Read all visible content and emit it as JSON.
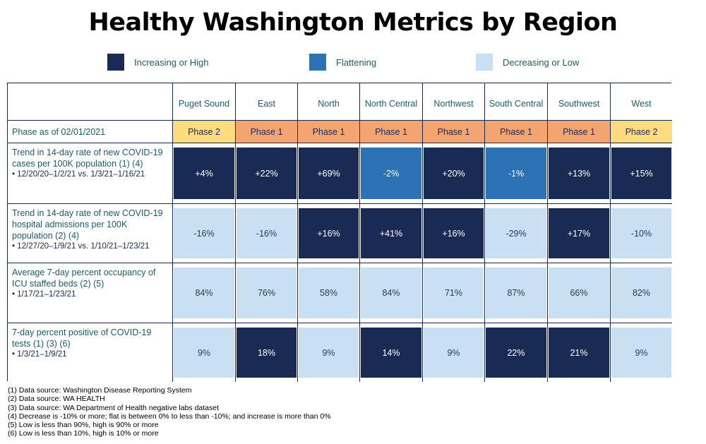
{
  "title": "Healthy Washington Metrics by Region",
  "legend": [
    {
      "label": "Increasing or High",
      "color": "#192a54"
    },
    {
      "label": "Flattening",
      "color": "#2d72b4"
    },
    {
      "label": "Decreasing or Low",
      "color": "#c9dff2"
    }
  ],
  "regions": [
    "Puget Sound",
    "East",
    "North",
    "North Central",
    "Northwest",
    "South Central",
    "Southwest",
    "West"
  ],
  "phase_row": {
    "label": "Phase as of 02/01/2021",
    "values": [
      "Phase 2",
      "Phase 1",
      "Phase 1",
      "Phase 1",
      "Phase 1",
      "Phase 1",
      "Phase 1",
      "Phase 2"
    ],
    "colors": {
      "Phase 1": "#f4a46f",
      "Phase 2": "#fddc80"
    }
  },
  "metrics": [
    {
      "label": "Trend in 14-day rate of new COVID-19 cases per 100K population (1) (4)",
      "bullet": "• 12/20/20–1/2/21 vs. 1/3/21–1/16/21",
      "values": [
        "+4%",
        "+22%",
        "+69%",
        "-2%",
        "+20%",
        "-1%",
        "+13%",
        "+15%"
      ],
      "levels": [
        "dark",
        "dark",
        "dark",
        "mid",
        "dark",
        "mid",
        "dark",
        "dark"
      ]
    },
    {
      "label": "Trend in 14-day rate of new COVID-19 hospital admissions per 100K population (2) (4)",
      "bullet": "• 12/27/20–1/9/21 vs. 1/10/21–1/23/21",
      "values": [
        "-16%",
        "-16%",
        "+16%",
        "+41%",
        "+16%",
        "-29%",
        "+17%",
        "-10%"
      ],
      "levels": [
        "light",
        "light",
        "dark",
        "dark",
        "dark",
        "light",
        "dark",
        "light"
      ]
    },
    {
      "label": "Average 7-day percent occupancy of ICU staffed beds (2) (5)",
      "bullet": "• 1/17/21–1/23/21",
      "values": [
        "84%",
        "76%",
        "58%",
        "84%",
        "71%",
        "87%",
        "66%",
        "82%"
      ],
      "levels": [
        "light",
        "light",
        "light",
        "light",
        "light",
        "light",
        "light",
        "light"
      ]
    },
    {
      "label": "7-day percent positive of COVID-19 tests (1) (3) (6)",
      "bullet": "• 1/3/21–1/9/21",
      "values": [
        "9%",
        "18%",
        "9%",
        "14%",
        "9%",
        "22%",
        "21%",
        "9%"
      ],
      "levels": [
        "light",
        "dark",
        "light",
        "dark",
        "light",
        "dark",
        "dark",
        "light"
      ]
    }
  ],
  "footnotes": [
    "(1) Data source: Washington Disease Reporting System",
    "(2) Data source: WA HEALTH",
    "(3) Data source: WA Department of Health negative labs dataset",
    "(4) Decrease is -10% or more; flat is between 0% to less than -10%; and increase is more than 0%",
    "(5) Low is less than 90%, high is 90% or more",
    "(6) Low is less than 10%, high is 10% or more"
  ]
}
